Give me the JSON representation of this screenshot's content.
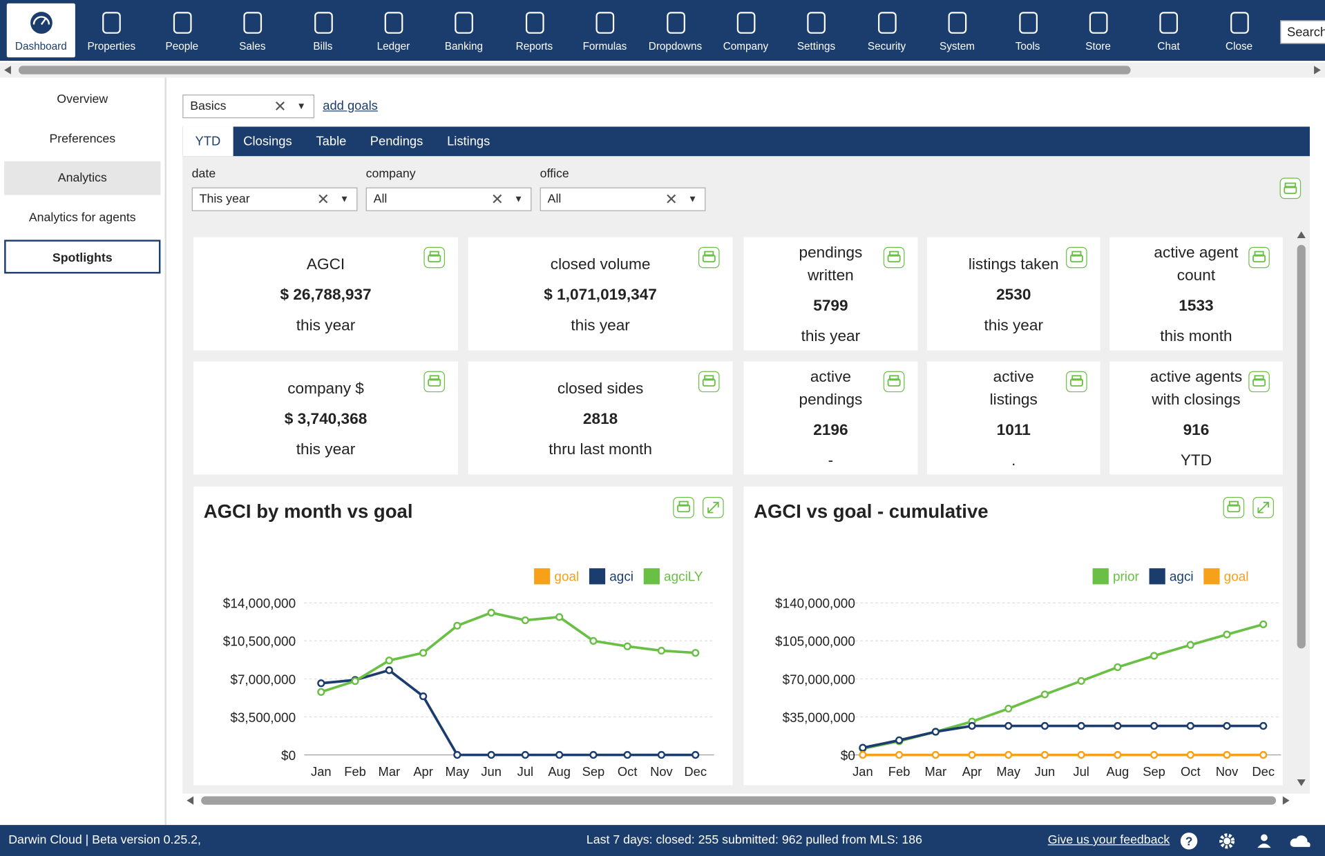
{
  "nav": [
    "Dashboard",
    "Properties",
    "People",
    "Sales",
    "Bills",
    "Ledger",
    "Banking",
    "Reports",
    "Formulas",
    "Dropdowns",
    "Company",
    "Settings",
    "Security",
    "System",
    "Tools",
    "Store",
    "Chat",
    "Close"
  ],
  "search": "Search",
  "sidebar": [
    "Overview",
    "Preferences",
    "Analytics",
    "Analytics for agents",
    "Spotlights"
  ],
  "goal_select": "Basics",
  "add_goals": "add goals",
  "tabs": [
    "YTD",
    "Closings",
    "Table",
    "Pendings",
    "Listings"
  ],
  "filters": [
    {
      "label": "date",
      "value": "This year"
    },
    {
      "label": "company",
      "value": "All"
    },
    {
      "label": "office",
      "value": "All"
    }
  ],
  "cards": [
    {
      "title": "AGCI",
      "value": "$ 26,788,937",
      "period": "this year"
    },
    {
      "title": "closed volume",
      "value": "$ 1,071,019,347",
      "period": "this year"
    },
    {
      "title": "pendings written",
      "value": "5799",
      "period": "this year"
    },
    {
      "title": "listings taken",
      "value": "2530",
      "period": "this year"
    },
    {
      "title": "active agent count",
      "value": "1533",
      "period": "this month"
    },
    {
      "title": "company $",
      "value": "$ 3,740,368",
      "period": "this year"
    },
    {
      "title": "closed sides",
      "value": "2818",
      "period": "thru last month"
    },
    {
      "title": "active pendings",
      "value": "2196",
      "period": "-"
    },
    {
      "title": "active listings",
      "value": "1011",
      "period": "."
    },
    {
      "title": "active agents with closings",
      "value": "916",
      "period": "YTD"
    }
  ],
  "chart_data": [
    {
      "type": "line",
      "title": "AGCI by month vs goal",
      "categories": [
        "Jan",
        "Feb",
        "Mar",
        "Apr",
        "May",
        "Jun",
        "Jul",
        "Aug",
        "Sep",
        "Oct",
        "Nov",
        "Dec"
      ],
      "series": [
        {
          "name": "goal",
          "color": "#f7a11a",
          "values": [
            null,
            null,
            null,
            null,
            null,
            null,
            null,
            null,
            null,
            null,
            null,
            null
          ]
        },
        {
          "name": "agci",
          "color": "#1b3d6d",
          "values": [
            6600000,
            6900000,
            7800000,
            5400000,
            0,
            0,
            0,
            0,
            0,
            0,
            0,
            0
          ]
        },
        {
          "name": "agciLY",
          "color": "#6abf45",
          "values": [
            5800000,
            6800000,
            8700000,
            9400000,
            11900000,
            13100000,
            12400000,
            12700000,
            10500000,
            10000000,
            9600000,
            9400000
          ]
        }
      ],
      "ylim": [
        0,
        14000000
      ],
      "yticks": [
        {
          "value": 0,
          "label": "$0"
        },
        {
          "value": 3500000,
          "label": "$3,500,000"
        },
        {
          "value": 7000000,
          "label": "$7,000,000"
        },
        {
          "value": 10500000,
          "label": "$10,500,000"
        },
        {
          "value": 14000000,
          "label": "$14,000,000"
        }
      ],
      "grid": true
    },
    {
      "type": "line",
      "title": "AGCI vs goal - cumulative",
      "categories": [
        "Jan",
        "Feb",
        "Mar",
        "Apr",
        "May",
        "Jun",
        "Jul",
        "Aug",
        "Sep",
        "Oct",
        "Nov",
        "Dec"
      ],
      "series": [
        {
          "name": "prior",
          "color": "#6abf45",
          "values": [
            5800000,
            12600000,
            21300000,
            30700000,
            42600000,
            55700000,
            68100000,
            80800000,
            91300000,
            101300000,
            110900000,
            120300000
          ]
        },
        {
          "name": "agci",
          "color": "#1b3d6d",
          "values": [
            6600000,
            13500000,
            21300000,
            26700000,
            26700000,
            26700000,
            26700000,
            26700000,
            26700000,
            26700000,
            26700000,
            26700000
          ]
        },
        {
          "name": "goal",
          "color": "#f7a11a",
          "values": [
            0,
            0,
            0,
            0,
            0,
            0,
            0,
            0,
            0,
            0,
            0,
            0
          ]
        }
      ],
      "ylim": [
        0,
        140000000
      ],
      "yticks": [
        {
          "value": 0,
          "label": "$0"
        },
        {
          "value": 35000000,
          "label": "$35,000,000"
        },
        {
          "value": 70000000,
          "label": "$70,000,000"
        },
        {
          "value": 105000000,
          "label": "$105,000,000"
        },
        {
          "value": 140000000,
          "label": "$140,000,000"
        }
      ],
      "grid": true
    }
  ],
  "footer": {
    "version": "Darwin Cloud | Beta version 0.25.2,",
    "stats": "Last 7 days: closed: 255 submitted: 962 pulled from MLS: 186",
    "feedback": "Give us your feedback"
  }
}
